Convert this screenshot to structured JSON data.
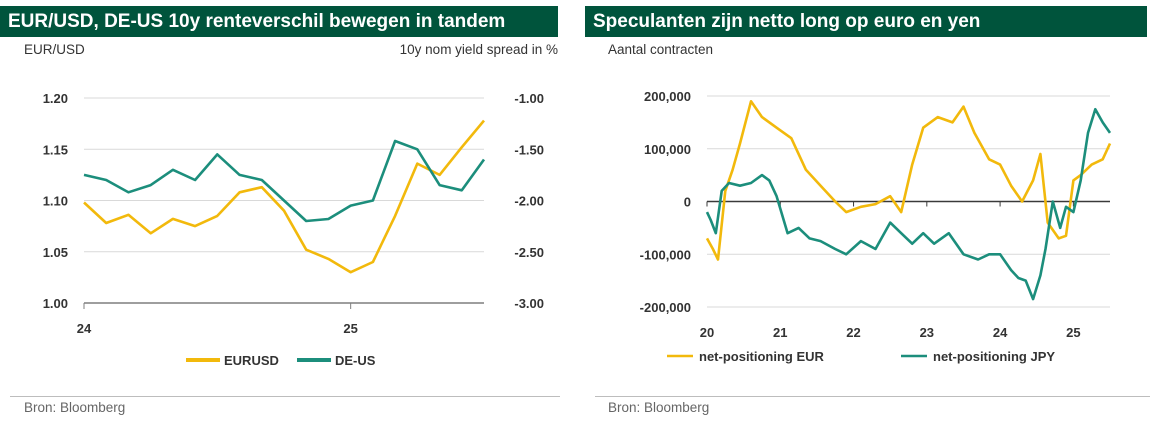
{
  "chart_data": [
    {
      "type": "line",
      "title": "EUR/USD, DE-US 10y renteverschil bewegen in tandem",
      "ylabel_left": "EUR/USD",
      "ylabel_right": "10y nom yield spread in %",
      "source": "Bron: Bloomberg",
      "x_ticks": [
        "24",
        "25"
      ],
      "xlim": [
        "2024-01",
        "2025-07"
      ],
      "ylim_left": [
        1.0,
        1.2
      ],
      "ylim_right": [
        -3.0,
        -1.0
      ],
      "y_ticks_left": [
        "1.20",
        "1.15",
        "1.10",
        "1.05",
        "1.00"
      ],
      "y_ticks_right": [
        "-1.00",
        "-1.50",
        "-2.00",
        "-2.50",
        "-3.00"
      ],
      "grid": true,
      "legend_position": "bottom",
      "series": [
        {
          "name": "EURUSD",
          "axis": "left",
          "color": "#f2b90c",
          "x": [
            "2024-01",
            "2024-02",
            "2024-03",
            "2024-04",
            "2024-05",
            "2024-06",
            "2024-07",
            "2024-08",
            "2024-09",
            "2024-10",
            "2024-11",
            "2024-12",
            "2025-01",
            "2025-02",
            "2025-03",
            "2025-04",
            "2025-05",
            "2025-06",
            "2025-07"
          ],
          "values": [
            1.098,
            1.078,
            1.086,
            1.068,
            1.082,
            1.075,
            1.085,
            1.108,
            1.113,
            1.09,
            1.052,
            1.043,
            1.03,
            1.04,
            1.085,
            1.136,
            1.125,
            1.152,
            1.178
          ]
        },
        {
          "name": "DE-US",
          "axis": "right",
          "color": "#1c8e7c",
          "x": [
            "2024-01",
            "2024-02",
            "2024-03",
            "2024-04",
            "2024-05",
            "2024-06",
            "2024-07",
            "2024-08",
            "2024-09",
            "2024-10",
            "2024-11",
            "2024-12",
            "2025-01",
            "2025-02",
            "2025-03",
            "2025-04",
            "2025-05",
            "2025-06",
            "2025-07"
          ],
          "values": [
            -1.75,
            -1.8,
            -1.92,
            -1.85,
            -1.7,
            -1.8,
            -1.55,
            -1.75,
            -1.8,
            -2.0,
            -2.2,
            -2.18,
            -2.05,
            -2.0,
            -1.42,
            -1.5,
            -1.85,
            -1.9,
            -1.6
          ]
        }
      ]
    },
    {
      "type": "line",
      "title": "Speculanten zijn netto long op euro en yen",
      "ylabel": "Aantal contracten",
      "source": "Bron: Bloomberg",
      "x_ticks": [
        "20",
        "21",
        "22",
        "23",
        "24",
        "25"
      ],
      "xlim": [
        2020.0,
        2025.5
      ],
      "ylim": [
        -200000,
        200000
      ],
      "y_ticks": [
        "200,000",
        "100,000",
        "0",
        "-100,000",
        "-200,000"
      ],
      "grid": true,
      "legend_position": "bottom",
      "series": [
        {
          "name": "net-positioning EUR",
          "color": "#f2b90c",
          "x": [
            2020.0,
            2020.08,
            2020.15,
            2020.25,
            2020.35,
            2020.45,
            2020.6,
            2020.75,
            2020.95,
            2021.15,
            2021.35,
            2021.55,
            2021.75,
            2021.9,
            2022.1,
            2022.3,
            2022.5,
            2022.65,
            2022.8,
            2022.95,
            2023.15,
            2023.35,
            2023.5,
            2023.65,
            2023.85,
            2024.0,
            2024.15,
            2024.3,
            2024.45,
            2024.55,
            2024.65,
            2024.8,
            2024.9,
            2025.0,
            2025.1,
            2025.25,
            2025.4,
            2025.5
          ],
          "values": [
            -70000,
            -90000,
            -110000,
            20000,
            60000,
            110000,
            190000,
            160000,
            140000,
            120000,
            60000,
            30000,
            0,
            -20000,
            -10000,
            -5000,
            10000,
            -20000,
            70000,
            140000,
            160000,
            150000,
            180000,
            130000,
            80000,
            70000,
            30000,
            0,
            40000,
            90000,
            -40000,
            -70000,
            -65000,
            40000,
            50000,
            70000,
            80000,
            110000
          ]
        },
        {
          "name": "net-positioning JPY",
          "color": "#1c8e7c",
          "x": [
            2020.0,
            2020.05,
            2020.12,
            2020.2,
            2020.3,
            2020.45,
            2020.6,
            2020.75,
            2020.85,
            2020.95,
            2021.1,
            2021.25,
            2021.4,
            2021.55,
            2021.75,
            2021.9,
            2022.1,
            2022.3,
            2022.5,
            2022.65,
            2022.8,
            2022.95,
            2023.1,
            2023.3,
            2023.5,
            2023.7,
            2023.85,
            2024.0,
            2024.15,
            2024.25,
            2024.35,
            2024.45,
            2024.55,
            2024.62,
            2024.72,
            2024.82,
            2024.9,
            2025.0,
            2025.1,
            2025.2,
            2025.3,
            2025.4,
            2025.5
          ],
          "values": [
            -20000,
            -35000,
            -60000,
            20000,
            35000,
            30000,
            35000,
            50000,
            40000,
            10000,
            -60000,
            -50000,
            -70000,
            -75000,
            -90000,
            -100000,
            -75000,
            -90000,
            -40000,
            -60000,
            -80000,
            -60000,
            -80000,
            -60000,
            -100000,
            -110000,
            -100000,
            -100000,
            -130000,
            -145000,
            -150000,
            -185000,
            -140000,
            -90000,
            0,
            -50000,
            -10000,
            -20000,
            40000,
            130000,
            175000,
            150000,
            130000
          ]
        }
      ]
    }
  ]
}
